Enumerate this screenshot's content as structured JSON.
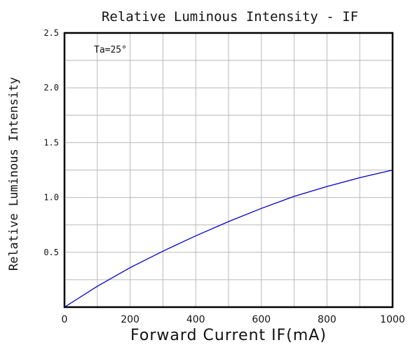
{
  "chart_data": {
    "type": "line",
    "title": "Relative Luminous Intensity - IF",
    "xlabel": "Forward Current IF(mA)",
    "ylabel": "Relative Luminous Intensity",
    "annotation": "Ta=25°",
    "xlim": [
      0,
      1000
    ],
    "ylim": [
      0,
      2.5
    ],
    "x_ticks": [
      "0",
      "200",
      "400",
      "600",
      "800",
      "1000"
    ],
    "y_ticks": [
      "0.5",
      "1.0",
      "1.5",
      "2.0",
      "2.5"
    ],
    "grid": true,
    "series": [
      {
        "color": "#0000cc",
        "x": [
          0,
          100,
          200,
          300,
          400,
          500,
          600,
          700,
          800,
          900,
          1000
        ],
        "y": [
          0,
          0.19,
          0.36,
          0.51,
          0.65,
          0.78,
          0.9,
          1.01,
          1.1,
          1.18,
          1.25
        ]
      }
    ]
  }
}
